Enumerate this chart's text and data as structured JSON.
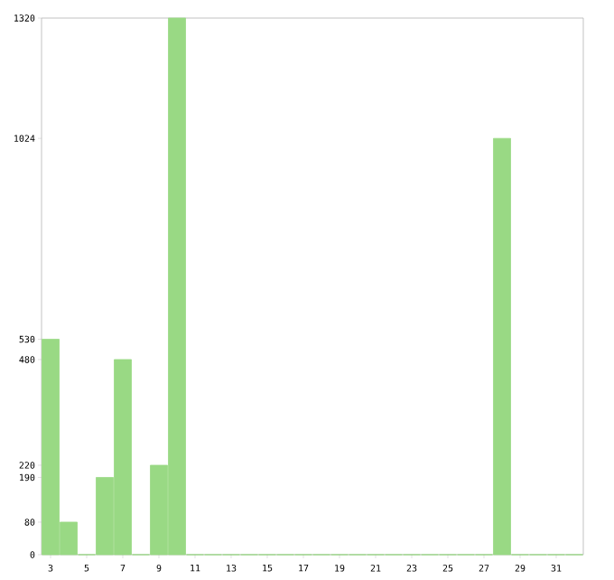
{
  "chart_data": {
    "type": "bar",
    "categories": [
      "3",
      null,
      "5",
      null,
      "7",
      null,
      "9",
      null,
      "11",
      null,
      "13",
      null,
      "15",
      null,
      "17",
      null,
      "19",
      null,
      "21",
      null,
      "23",
      null,
      "25",
      null,
      "27",
      null,
      "29",
      null,
      "31",
      null
    ],
    "values": [
      530,
      80,
      0,
      190,
      480,
      0,
      220,
      1320,
      0,
      0,
      0,
      0,
      0,
      0,
      0,
      0,
      0,
      0,
      0,
      0,
      0,
      0,
      0,
      0,
      0,
      1024,
      0,
      0,
      0,
      0
    ],
    "color": "#99d984",
    "ylim": [
      0,
      1320
    ],
    "yticks": [
      0,
      80,
      190,
      220,
      480,
      530,
      1024,
      1320
    ],
    "grid": false
  }
}
